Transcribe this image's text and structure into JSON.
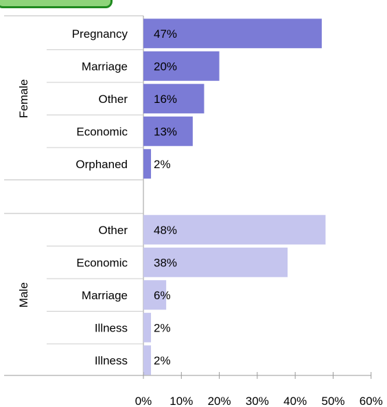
{
  "chart_data": {
    "type": "bar",
    "orientation": "horizontal",
    "title": "",
    "xlabel": "",
    "ylabel": "",
    "xlim": [
      0,
      60
    ],
    "x_ticks": [
      "0%",
      "10%",
      "20%",
      "30%",
      "40%",
      "50%",
      "60%"
    ],
    "grid": false,
    "groups": [
      {
        "name": "Female",
        "color": "#7b7bd6",
        "bars": [
          {
            "category": "Pregnancy",
            "value": 47,
            "label": "47%"
          },
          {
            "category": "Marriage",
            "value": 20,
            "label": "20%"
          },
          {
            "category": "Other",
            "value": 16,
            "label": "16%"
          },
          {
            "category": "Economic",
            "value": 13,
            "label": "13%"
          },
          {
            "category": "Orphaned",
            "value": 2,
            "label": "2%"
          }
        ]
      },
      {
        "name": "Male",
        "color": "#c5c5ee",
        "bars": [
          {
            "category": "Other",
            "value": 48,
            "label": "48%"
          },
          {
            "category": "Economic",
            "value": 38,
            "label": "38%"
          },
          {
            "category": "Marriage",
            "value": 6,
            "label": "6%"
          },
          {
            "category": "Illness",
            "value": 2,
            "label": "2%"
          },
          {
            "category": "Illness",
            "value": 2,
            "label": "2%"
          }
        ]
      }
    ]
  },
  "colors": {
    "corner_tab_fill": "#8ed47a",
    "corner_tab_border": "#1f8a1f",
    "axis": "#999999",
    "text": "#000000"
  }
}
